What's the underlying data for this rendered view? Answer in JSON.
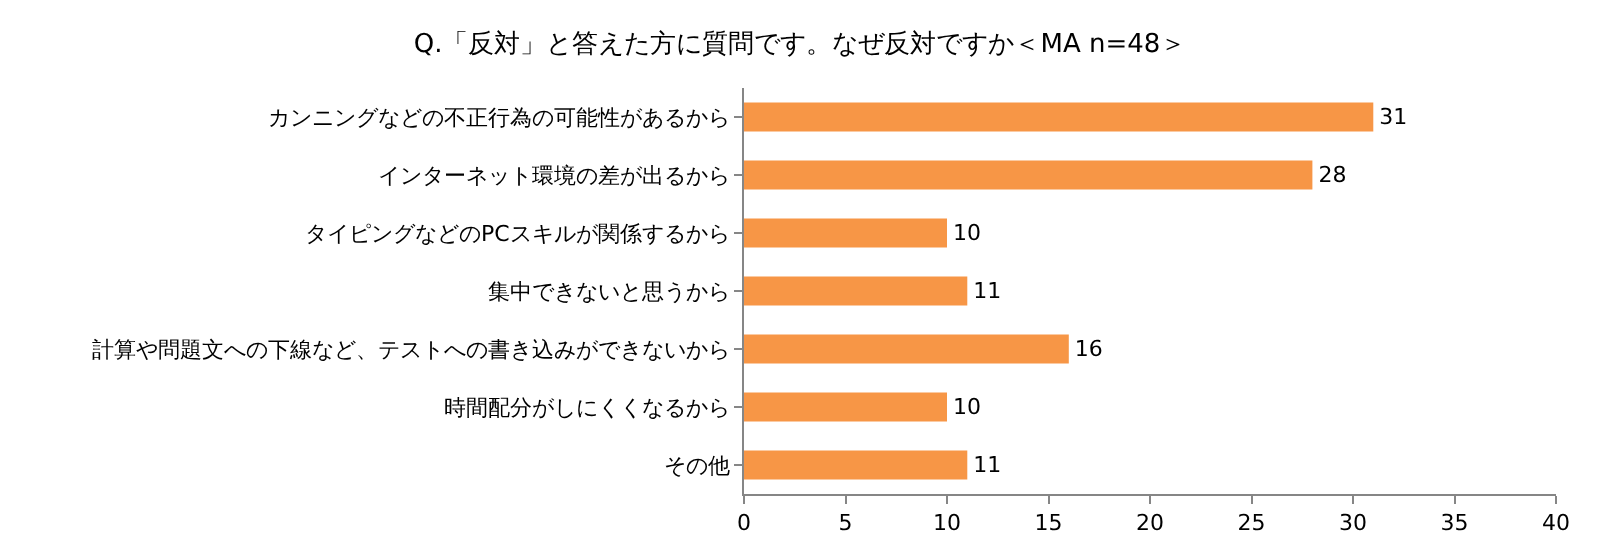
{
  "chart_data": {
    "type": "bar",
    "orientation": "horizontal",
    "title": "Q.「反対」と答えた方に質問です。なぜ反対ですか＜MA n=48＞",
    "categories": [
      "カンニングなどの不正行為の可能性があるから",
      "インターネット環境の差が出るから",
      "タイピングなどのPCスキルが関係するから",
      "集中できないと思うから",
      "計算や問題文への下線など、テストへの書き込みができないから",
      "時間配分がしにくくなるから",
      "その他"
    ],
    "values": [
      31,
      28,
      10,
      11,
      16,
      10,
      11
    ],
    "color": "#f79646",
    "xlim": [
      0,
      40
    ],
    "xticks": [
      0,
      5,
      10,
      15,
      20,
      25,
      30,
      35,
      40
    ],
    "grid": false,
    "legend": false,
    "data_labels": true
  }
}
